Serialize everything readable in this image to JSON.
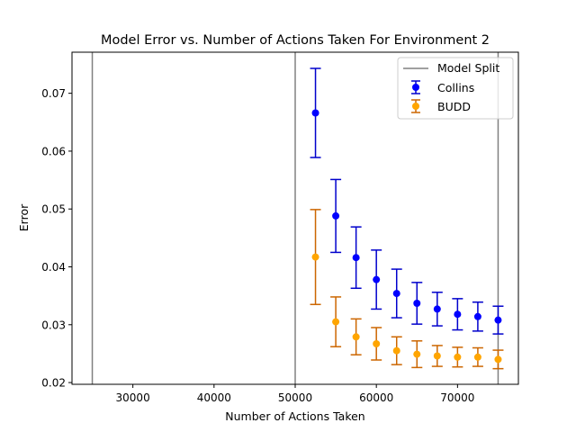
{
  "chart_data": {
    "type": "scatter",
    "title": "Model Error vs. Number of Actions Taken For Environment 2",
    "xlabel": "Number of Actions Taken",
    "ylabel": "Error",
    "xlim": [
      22500,
      77500
    ],
    "ylim": [
      0.0197,
      0.0771
    ],
    "xticks": [
      30000,
      40000,
      50000,
      60000,
      70000
    ],
    "yticks": [
      0.02,
      0.03,
      0.04,
      0.05,
      0.06,
      0.07
    ],
    "xtick_labels": [
      "30000",
      "40000",
      "50000",
      "60000",
      "70000"
    ],
    "ytick_labels": [
      "0.02",
      "0.03",
      "0.04",
      "0.05",
      "0.06",
      "0.07"
    ],
    "grid": false,
    "legend_position": "top-right",
    "vlines": {
      "name": "Model Split",
      "color": "#808080",
      "x": [
        25000,
        50000,
        75000
      ]
    },
    "series": [
      {
        "name": "Collins",
        "color": "#0000ff",
        "errcolor": "#0000cc",
        "x": [
          52500,
          55000,
          57500,
          60000,
          62500,
          65000,
          67500,
          70000,
          72500,
          75000
        ],
        "y": [
          0.0666,
          0.0488,
          0.0416,
          0.0378,
          0.0354,
          0.0337,
          0.0327,
          0.0318,
          0.0314,
          0.0308
        ],
        "err": [
          0.0077,
          0.0063,
          0.0053,
          0.0051,
          0.0042,
          0.0036,
          0.0029,
          0.0027,
          0.0025,
          0.0024
        ]
      },
      {
        "name": "BUDD",
        "color": "#ffa500",
        "errcolor": "#cc6600",
        "x": [
          52500,
          55000,
          57500,
          60000,
          62500,
          65000,
          67500,
          70000,
          72500,
          75000
        ],
        "y": [
          0.0417,
          0.0305,
          0.0279,
          0.0267,
          0.0255,
          0.0249,
          0.0246,
          0.0244,
          0.0244,
          0.024
        ],
        "err": [
          0.0082,
          0.0043,
          0.0031,
          0.0028,
          0.0024,
          0.0023,
          0.0018,
          0.0017,
          0.0016,
          0.0016
        ]
      }
    ]
  }
}
